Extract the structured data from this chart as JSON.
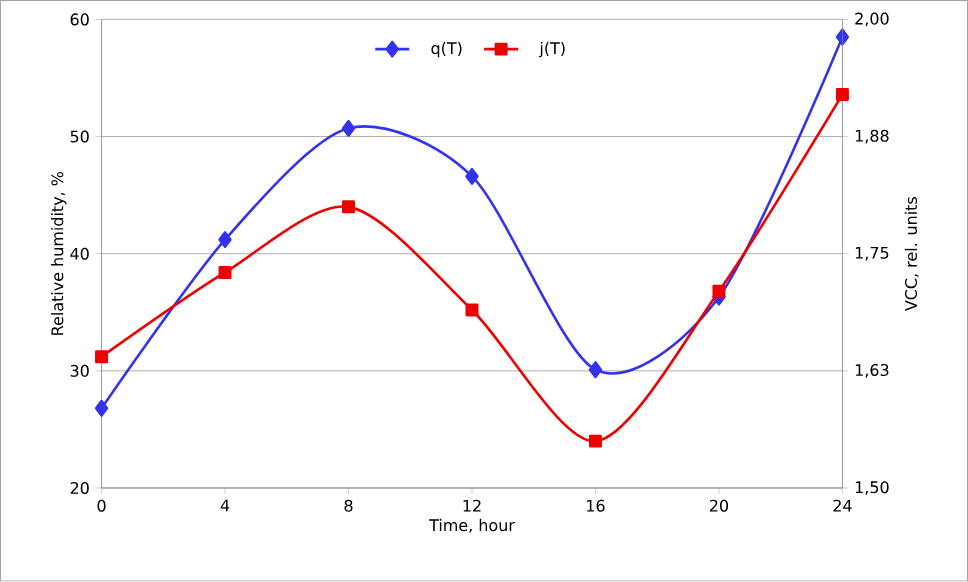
{
  "chart_data": {
    "type": "line",
    "x": [
      0,
      4,
      8,
      12,
      16,
      20,
      24
    ],
    "series": [
      {
        "name": "q(T)",
        "color": "#3333ee",
        "marker": "diamond",
        "axis": "y",
        "values": [
          26.8,
          41.2,
          50.7,
          46.6,
          30.1,
          36.3,
          58.5
        ]
      },
      {
        "name": "j(T)",
        "color": "#ee0000",
        "marker": "square",
        "axis": "y2",
        "values": [
          1.64,
          1.73,
          1.8,
          1.69,
          1.55,
          1.71,
          1.92
        ]
      }
    ],
    "xlabel": "Time, hour",
    "ylabel": "Relative humidity, %",
    "y2label": "VCC, rel. units",
    "xlim": [
      0,
      24
    ],
    "xticks": [
      0,
      4,
      8,
      12,
      16,
      20,
      24
    ],
    "ylim": [
      20,
      60
    ],
    "yticks": [
      20,
      30,
      40,
      50,
      60
    ],
    "y2lim": [
      1.5,
      2.0
    ],
    "y2ticks": [
      {
        "value": 1.5,
        "label": "1,50"
      },
      {
        "value": 1.625,
        "label": "1,63"
      },
      {
        "value": 1.75,
        "label": "1,75"
      },
      {
        "value": 1.875,
        "label": "1,88"
      },
      {
        "value": 2.0,
        "label": "2,00"
      }
    ],
    "grid": "y",
    "legend": "top"
  }
}
